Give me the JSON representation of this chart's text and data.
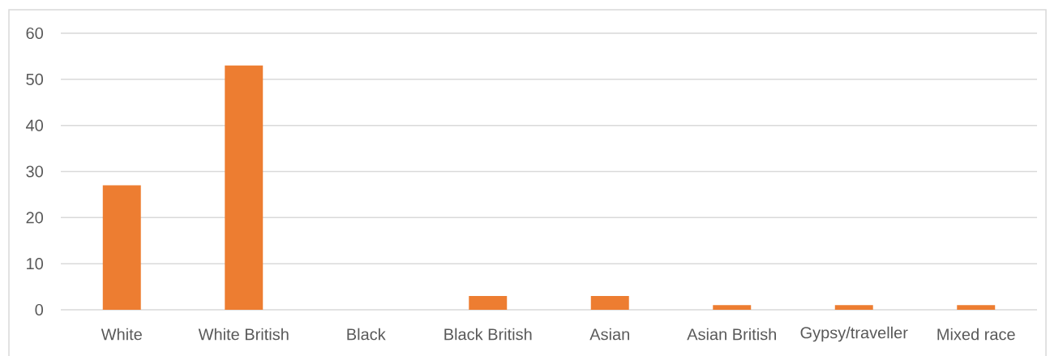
{
  "chart_data": {
    "type": "bar",
    "categories": [
      "White",
      "White British",
      "Black",
      "Black British",
      "Asian",
      "Asian British",
      "Gypsy/traveller",
      "Mixed race"
    ],
    "values": [
      27,
      53,
      0,
      3,
      3,
      1,
      1,
      1
    ],
    "color": "#ed7d31",
    "ylim": [
      0,
      60
    ],
    "yticks": [
      0,
      10,
      20,
      30,
      40,
      50,
      60
    ],
    "grid": "y"
  }
}
